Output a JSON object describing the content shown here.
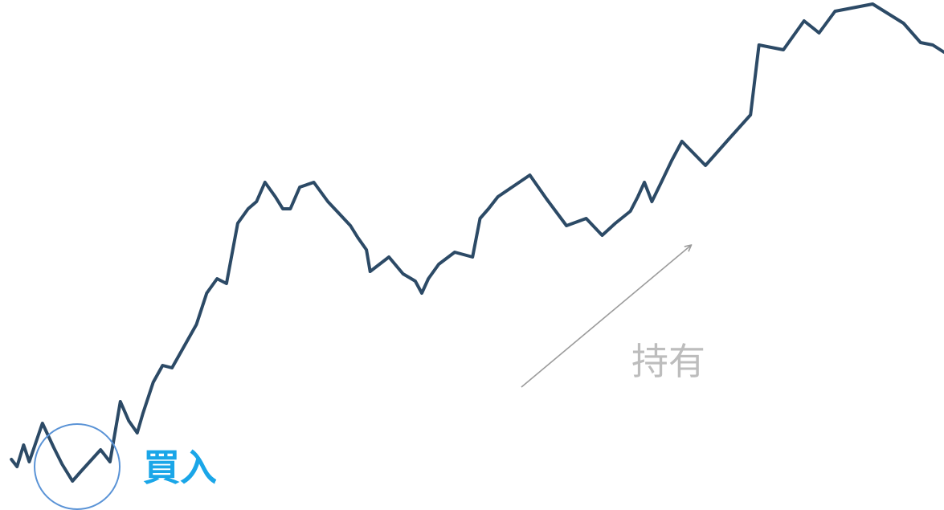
{
  "chart_data": {
    "type": "line",
    "title": "",
    "xlabel": "",
    "ylabel": "",
    "grid": false,
    "axes_visible": false,
    "y_lim": [
      0,
      100
    ],
    "x_lim": [
      0,
      100
    ],
    "series": [
      {
        "values": [
          [
            0.7,
            8.0
          ],
          [
            1.3,
            6.5
          ],
          [
            2.0,
            11.0
          ],
          [
            2.6,
            7.5
          ],
          [
            4.0,
            15.5
          ],
          [
            5.2,
            10.5
          ],
          [
            6.1,
            7.0
          ],
          [
            7.2,
            3.5
          ],
          [
            8.1,
            5.5
          ],
          [
            10.2,
            10.0
          ],
          [
            11.2,
            7.5
          ],
          [
            12.3,
            20.0
          ],
          [
            13.2,
            16.0
          ],
          [
            14.1,
            13.5
          ],
          [
            14.7,
            17.5
          ],
          [
            15.8,
            24.0
          ],
          [
            16.8,
            27.5
          ],
          [
            17.8,
            27.0
          ],
          [
            19.1,
            31.5
          ],
          [
            20.4,
            36.0
          ],
          [
            21.5,
            42.5
          ],
          [
            22.6,
            45.5
          ],
          [
            23.6,
            44.5
          ],
          [
            24.8,
            57.0
          ],
          [
            25.9,
            60.0
          ],
          [
            26.8,
            61.5
          ],
          [
            27.7,
            65.5
          ],
          [
            28.8,
            62.5
          ],
          [
            29.6,
            60.0
          ],
          [
            30.4,
            60.0
          ],
          [
            31.4,
            64.5
          ],
          [
            32.9,
            65.5
          ],
          [
            34.4,
            61.5
          ],
          [
            35.6,
            59.0
          ],
          [
            36.8,
            56.5
          ],
          [
            37.6,
            54.0
          ],
          [
            38.5,
            51.5
          ],
          [
            38.9,
            47.0
          ],
          [
            40.9,
            50.0
          ],
          [
            42.4,
            46.5
          ],
          [
            43.7,
            45.0
          ],
          [
            44.4,
            42.5
          ],
          [
            45.1,
            45.5
          ],
          [
            46.2,
            48.5
          ],
          [
            47.9,
            51.0
          ],
          [
            49.8,
            50.0
          ],
          [
            50.6,
            58.0
          ],
          [
            51.5,
            60.0
          ],
          [
            52.5,
            62.5
          ],
          [
            55.9,
            67.0
          ],
          [
            57.7,
            62.0
          ],
          [
            59.8,
            56.5
          ],
          [
            61.9,
            58.0
          ],
          [
            63.6,
            54.5
          ],
          [
            65.0,
            57.0
          ],
          [
            66.6,
            59.5
          ],
          [
            67.4,
            62.5
          ],
          [
            68.1,
            65.5
          ],
          [
            68.9,
            61.5
          ],
          [
            69.9,
            65.5
          ],
          [
            71.0,
            70.0
          ],
          [
            72.1,
            74.0
          ],
          [
            74.6,
            69.0
          ],
          [
            77.1,
            74.5
          ],
          [
            79.4,
            79.5
          ],
          [
            80.3,
            94.0
          ],
          [
            82.9,
            93.0
          ],
          [
            85.1,
            99.0
          ],
          [
            86.7,
            96.5
          ],
          [
            88.4,
            101.0
          ],
          [
            92.4,
            102.5
          ],
          [
            95.7,
            98.5
          ],
          [
            97.5,
            94.5
          ],
          [
            98.8,
            94.0
          ],
          [
            100.0,
            92.5
          ]
        ]
      }
    ],
    "annotations": [
      {
        "label": "買入",
        "x": 7.7,
        "y": 6.5,
        "kind": "circle"
      },
      {
        "label": "持有",
        "x_start": 55.0,
        "y_start": 23.0,
        "x_end": 73.1,
        "y_end": 52.5,
        "kind": "arrow"
      }
    ],
    "colors": {
      "line": "#2c4a66",
      "buy": "#1aa6e8",
      "buy_circle": "#5a93d6",
      "hold": "#bdbdbd",
      "hold_arrow": "#9c9c9c"
    }
  }
}
